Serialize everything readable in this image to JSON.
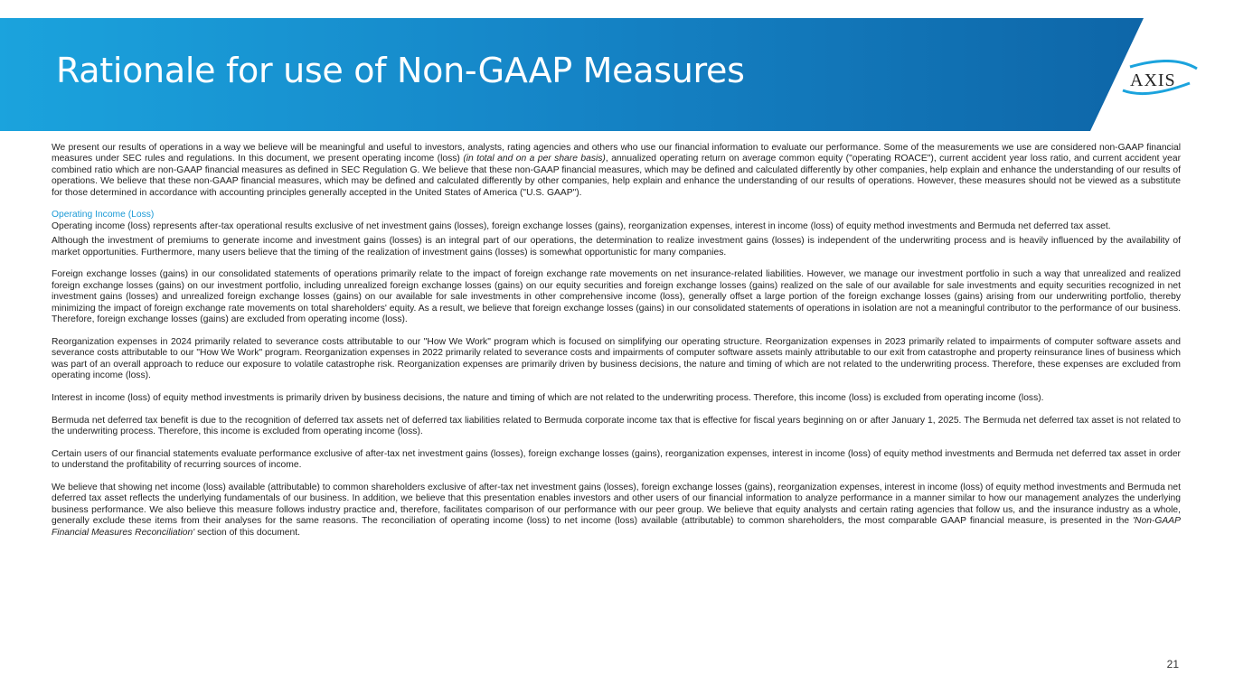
{
  "header": {
    "title": "Rationale for use of Non-GAAP Measures",
    "logo_text": "AXIS",
    "accent": "#1b9ad6"
  },
  "intro": {
    "part1": "We present our results of operations in a way we believe will be meaningful and useful to investors, analysts, rating agencies and others who use our financial information to evaluate our performance. Some of the measurements we use are considered non-GAAP financial measures under SEC rules and regulations. In this document, we present operating income (loss) ",
    "italic": "(in total and on a per share basis)",
    "part2": ", annualized operating return on average common equity (\"operating ROACE\"), current accident year loss ratio, and current accident year combined ratio which are non-GAAP financial measures as defined in SEC Regulation G. We believe that these non-GAAP financial measures, which may be defined and calculated differently by other companies, help explain and enhance the understanding of our results of operations. We believe that these non-GAAP financial measures, which may be defined and calculated differently by other companies, help explain and enhance the understanding of our results of operations. However, these measures should not be viewed as a substitute for those determined in accordance with accounting principles generally accepted in the United States of America (\"U.S. GAAP\")."
  },
  "section": {
    "heading": "Operating Income (Loss)",
    "paragraphs": [
      "Operating income (loss) represents after-tax operational results exclusive of net investment gains (losses), foreign exchange losses (gains), reorganization expenses, interest in income (loss) of equity method investments and Bermuda net deferred tax asset.",
      "Although the investment of premiums to generate income and investment gains (losses) is an integral part of our operations, the determination to realize investment gains (losses) is independent of the underwriting process and is heavily influenced by the availability of market opportunities. Furthermore, many users believe that the timing of the realization of investment gains (losses) is somewhat opportunistic for many companies.",
      "Foreign exchange losses (gains) in our consolidated statements of operations primarily relate to the impact of foreign exchange rate movements on net insurance-related liabilities. However, we manage our investment portfolio in such a way that unrealized and realized foreign exchange losses (gains) on our investment portfolio, including unrealized foreign exchange losses (gains) on our equity securities and foreign exchange losses (gains) realized on the sale of our available for sale investments and equity securities recognized in net investment gains (losses) and unrealized foreign exchange losses (gains) on our available for sale investments in other comprehensive income (loss), generally offset a large portion of the foreign exchange losses (gains) arising from our underwriting portfolio, thereby minimizing the impact of foreign exchange rate movements on total shareholders' equity. As a result, we believe that foreign exchange losses (gains) in our consolidated statements of operations in isolation are not a meaningful contributor to the performance of our business. Therefore, foreign exchange losses (gains) are excluded from operating income (loss).",
      "Reorganization expenses in 2024 primarily related to severance costs attributable to our \"How We Work\" program which is focused on simplifying our operating structure. Reorganization expenses in 2023 primarily related to impairments of computer software assets and severance costs attributable to our \"How We Work\" program. Reorganization expenses in 2022 primarily related to severance costs and impairments of computer software assets mainly attributable to our exit from catastrophe and property reinsurance lines of business which was part of an overall approach to reduce our exposure to volatile catastrophe risk. Reorganization expenses are primarily driven by business decisions, the nature and timing of which are not related to the underwriting process. Therefore, these expenses are excluded from operating income (loss).",
      "Interest in income (loss) of equity method investments is primarily driven by business decisions, the nature and timing of which are not related to the underwriting process. Therefore, this income (loss) is excluded from operating income (loss).",
      "Bermuda net deferred tax benefit is due to the recognition of deferred tax assets net of deferred tax liabilities related to Bermuda corporate income tax that is effective for fiscal years beginning on or after January 1, 2025. The Bermuda net deferred tax asset is not related to the underwriting process. Therefore, this income is excluded from operating income (loss).",
      "Certain users of our financial statements evaluate performance exclusive of after-tax net investment gains (losses), foreign exchange losses (gains), reorganization expenses, interest in income (loss) of equity method investments and Bermuda net deferred tax asset in order to understand the profitability of recurring sources of income."
    ],
    "final": {
      "part1": "We believe that showing net income (loss) available (attributable) to common shareholders exclusive of after-tax net investment gains (losses), foreign exchange losses (gains), reorganization expenses, interest in income (loss) of equity method investments and Bermuda net deferred tax asset reflects the underlying fundamentals of our business. In addition, we believe that this presentation enables investors and other users of our financial information to analyze performance in a manner similar to how our management analyzes the underlying business performance. We also believe this measure follows industry practice and, therefore, facilitates comparison of our performance with our peer group. We believe that equity analysts and certain rating agencies that follow us, and the insurance industry as a whole, generally exclude these items from their analyses for the same reasons. The reconciliation of operating income (loss) to net income (loss) available (attributable) to common shareholders, the most comparable GAAP financial measure, is presented in the ",
      "italic": "'Non-GAAP Financial Measures Reconciliation'",
      "part2": " section of this document."
    }
  },
  "footer": {
    "page_number": "21"
  }
}
